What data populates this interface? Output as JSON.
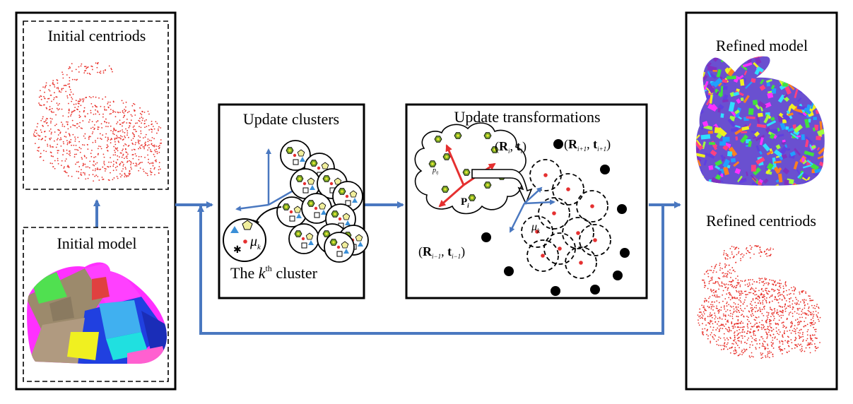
{
  "labels": {
    "initial_centroids": "Initial centriods",
    "initial_model": "Initial model",
    "update_clusters": "Update clusters",
    "kth_cluster_prefix": "The ",
    "kth_cluster_k": "k",
    "kth_cluster_sup": "th",
    "kth_cluster_suffix": " cluster",
    "update_transformations": "Update transformations",
    "refined_model": "Refined model",
    "refined_centroids": "Refined centriods"
  },
  "math": {
    "mu_symbol": "μ",
    "mu_sub": "k",
    "p_label": "P",
    "p_sub": "i",
    "point_label": "p",
    "point_sub": "ij",
    "rt_i_R": "R",
    "rt_i_sub": "i",
    "rt_next_sub": "i+1",
    "rt_prev_sub": "i−1",
    "t_symbol": "t"
  },
  "colors": {
    "arrow": "#4a78c0",
    "points": "#e8302a",
    "frame_red": "#e53030",
    "frame_blue": "#4a78c0",
    "hexagon_fill": "#7aa52a",
    "hexagon_core": "#e8e830",
    "pentagon_fill": "#f0ee9c",
    "triangle_fill": "#3a8fd8"
  }
}
